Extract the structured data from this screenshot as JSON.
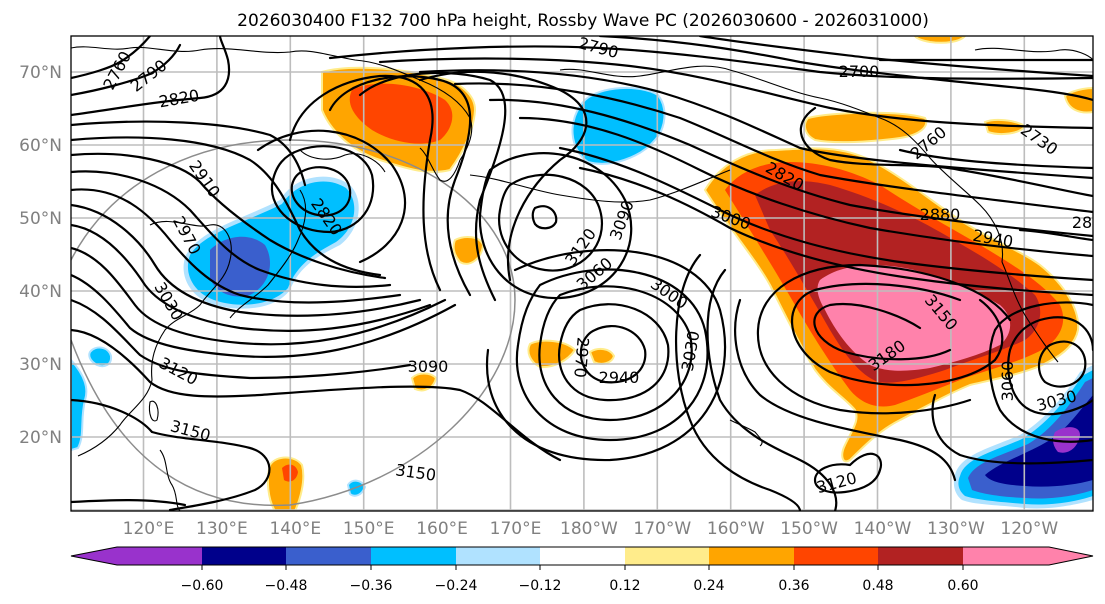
{
  "title": "2026030400 F132 700 hPa height, Rossby Wave PC (2026030600 - 2026031000)",
  "map": {
    "lat_labels": [
      "70°N",
      "60°N",
      "50°N",
      "40°N",
      "30°N",
      "20°N"
    ],
    "lon_labels": [
      "120°E",
      "130°E",
      "140°E",
      "150°E",
      "160°E",
      "170°E",
      "180°W",
      "170°W",
      "160°W",
      "150°W",
      "140°W",
      "130°W",
      "120°W"
    ],
    "contour_labels": [
      "2760",
      "2790",
      "2820",
      "2910",
      "2970",
      "3030",
      "3120",
      "3150",
      "2820",
      "3090",
      "3150",
      "2790",
      "3120",
      "3090",
      "3060",
      "3000",
      "2970",
      "2940",
      "3030",
      "2700",
      "2760",
      "2730",
      "3000",
      "2820",
      "2880",
      "2940",
      "28",
      "3150",
      "3180",
      "3060",
      "3030",
      "3120"
    ]
  },
  "colorbar": {
    "tick_labels": [
      "−0.60",
      "−0.48",
      "−0.36",
      "−0.24",
      "−0.12",
      "0.12",
      "0.24",
      "0.36",
      "0.48",
      "0.60"
    ],
    "colors": [
      "#9932cc",
      "#00008b",
      "#3a5fcd",
      "#00bfff",
      "#b0e2ff",
      "#ffffff",
      "#ffec8b",
      "#ffa500",
      "#ff4500",
      "#b22222",
      "#ff82ab"
    ],
    "extend": "both"
  },
  "colors": {
    "grid": "#bdbdbd",
    "tick_text": "#808080"
  }
}
